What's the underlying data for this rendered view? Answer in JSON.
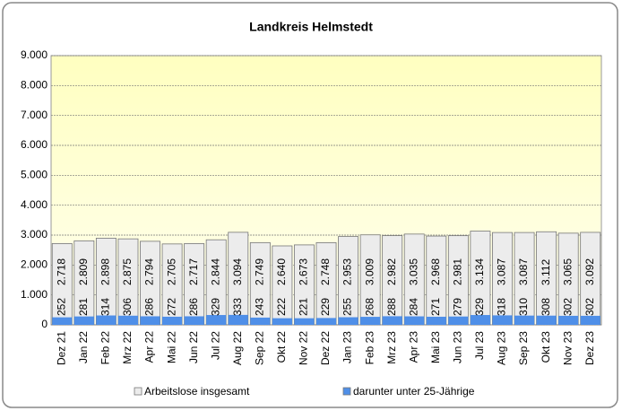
{
  "chart_data": {
    "type": "overlapped-bar",
    "title": "Landkreis Helmstedt",
    "categories": [
      "Dez 21",
      "Jan 22",
      "Feb 22",
      "Mrz 22",
      "Apr 22",
      "Mai 22",
      "Jun 22",
      "Jul 22",
      "Aug 22",
      "Sep 22",
      "Okt 22",
      "Nov 22",
      "Dez 22",
      "Jan 23",
      "Feb 23",
      "Mrz 23",
      "Apr 23",
      "Mai 23",
      "Jun 23",
      "Jul 23",
      "Aug 23",
      "Sep 23",
      "Okt 23",
      "Nov 23",
      "Dez 23"
    ],
    "series": [
      {
        "name": "Arbeitslose insgesamt",
        "color": "#ececec",
        "values": [
          2718,
          2809,
          2898,
          2875,
          2794,
          2705,
          2717,
          2844,
          3094,
          2749,
          2640,
          2673,
          2748,
          2953,
          3009,
          2982,
          3035,
          2968,
          2981,
          3134,
          3087,
          3087,
          3112,
          3065,
          3092
        ],
        "value_labels": [
          "2.718",
          "2.809",
          "2.898",
          "2.875",
          "2.794",
          "2.705",
          "2.717",
          "2.844",
          "3.094",
          "2.749",
          "2.640",
          "2.673",
          "2.748",
          "2.953",
          "3.009",
          "2.982",
          "3.035",
          "2.968",
          "2.981",
          "3.134",
          "3.087",
          "3.087",
          "3.112",
          "3.065",
          "3.092"
        ]
      },
      {
        "name": "darunter unter 25-Jährige",
        "color": "#4f8fe8",
        "values": [
          252,
          281,
          314,
          306,
          286,
          272,
          286,
          329,
          333,
          243,
          222,
          221,
          229,
          255,
          268,
          288,
          284,
          271,
          279,
          329,
          318,
          310,
          308,
          302,
          302
        ]
      }
    ],
    "ylim": [
      0,
      9000
    ],
    "yticks": [
      0,
      {
        "value": 1000,
        "label": "1.000"
      },
      {
        "value": 2000,
        "label": "2.000"
      },
      {
        "value": 3000,
        "label": "3.000"
      },
      {
        "value": 4000,
        "label": "4.000"
      },
      {
        "value": 5000,
        "label": "5.000"
      },
      {
        "value": 6000,
        "label": "6.000"
      },
      {
        "value": 7000,
        "label": "7.000"
      },
      {
        "value": 8000,
        "label": "8.000"
      },
      {
        "value": 9000,
        "label": "9.000"
      }
    ],
    "grid": true,
    "legend": "bottom"
  }
}
